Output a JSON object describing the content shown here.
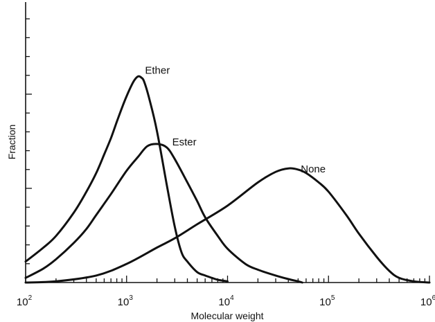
{
  "chart_data": {
    "type": "line",
    "xlabel": "Molecular weight",
    "ylabel": "Fraction",
    "xscale": "log",
    "xlim": [
      100,
      1000000
    ],
    "ylim": [
      0,
      11
    ],
    "x_tick_labels": [
      {
        "base": "10",
        "exp": "2"
      },
      {
        "base": "10",
        "exp": "3"
      },
      {
        "base": "10",
        "exp": "4"
      },
      {
        "base": "10",
        "exp": "5"
      },
      {
        "base": "10",
        "exp": "6"
      }
    ],
    "grid": false,
    "legend": "none",
    "series": [
      {
        "name": "Ether",
        "x": [
          100,
          150,
          200,
          300,
          400,
          500,
          600,
          700,
          800,
          900,
          1000,
          1100,
          1200,
          1300,
          1400,
          1500,
          1700,
          2000,
          2500,
          3000,
          3500,
          4000,
          5000,
          6000,
          7000,
          8000,
          10000
        ],
        "y": [
          0.9,
          1.5,
          2.0,
          3.0,
          3.9,
          4.7,
          5.5,
          6.2,
          6.9,
          7.5,
          8.0,
          8.4,
          8.7,
          8.85,
          8.8,
          8.6,
          7.8,
          6.5,
          4.2,
          2.4,
          1.3,
          0.9,
          0.45,
          0.3,
          0.2,
          0.12,
          0.05
        ]
      },
      {
        "name": "Ester",
        "x": [
          100,
          150,
          200,
          300,
          400,
          500,
          700,
          1000,
          1300,
          1600,
          2000,
          2500,
          3000,
          4000,
          5000,
          6000,
          8000,
          10000,
          15000,
          20000,
          30000,
          40000,
          50000,
          55000
        ],
        "y": [
          0.2,
          0.6,
          1.0,
          1.7,
          2.3,
          2.9,
          3.8,
          4.8,
          5.4,
          5.85,
          5.95,
          5.8,
          5.3,
          4.3,
          3.5,
          2.8,
          2.0,
          1.45,
          0.8,
          0.55,
          0.3,
          0.15,
          0.05,
          0.0
        ]
      },
      {
        "name": "None",
        "x": [
          100,
          200,
          500,
          1000,
          2000,
          3000,
          5000,
          10000,
          20000,
          30000,
          40000,
          50000,
          60000,
          80000,
          100000,
          150000,
          200000,
          300000,
          400000,
          500000,
          700000,
          1000000
        ],
        "y": [
          0.0,
          0.05,
          0.3,
          0.8,
          1.5,
          1.9,
          2.5,
          3.3,
          4.3,
          4.75,
          4.9,
          4.85,
          4.7,
          4.3,
          3.9,
          2.9,
          2.1,
          1.1,
          0.5,
          0.2,
          0.05,
          0.0
        ]
      }
    ]
  }
}
